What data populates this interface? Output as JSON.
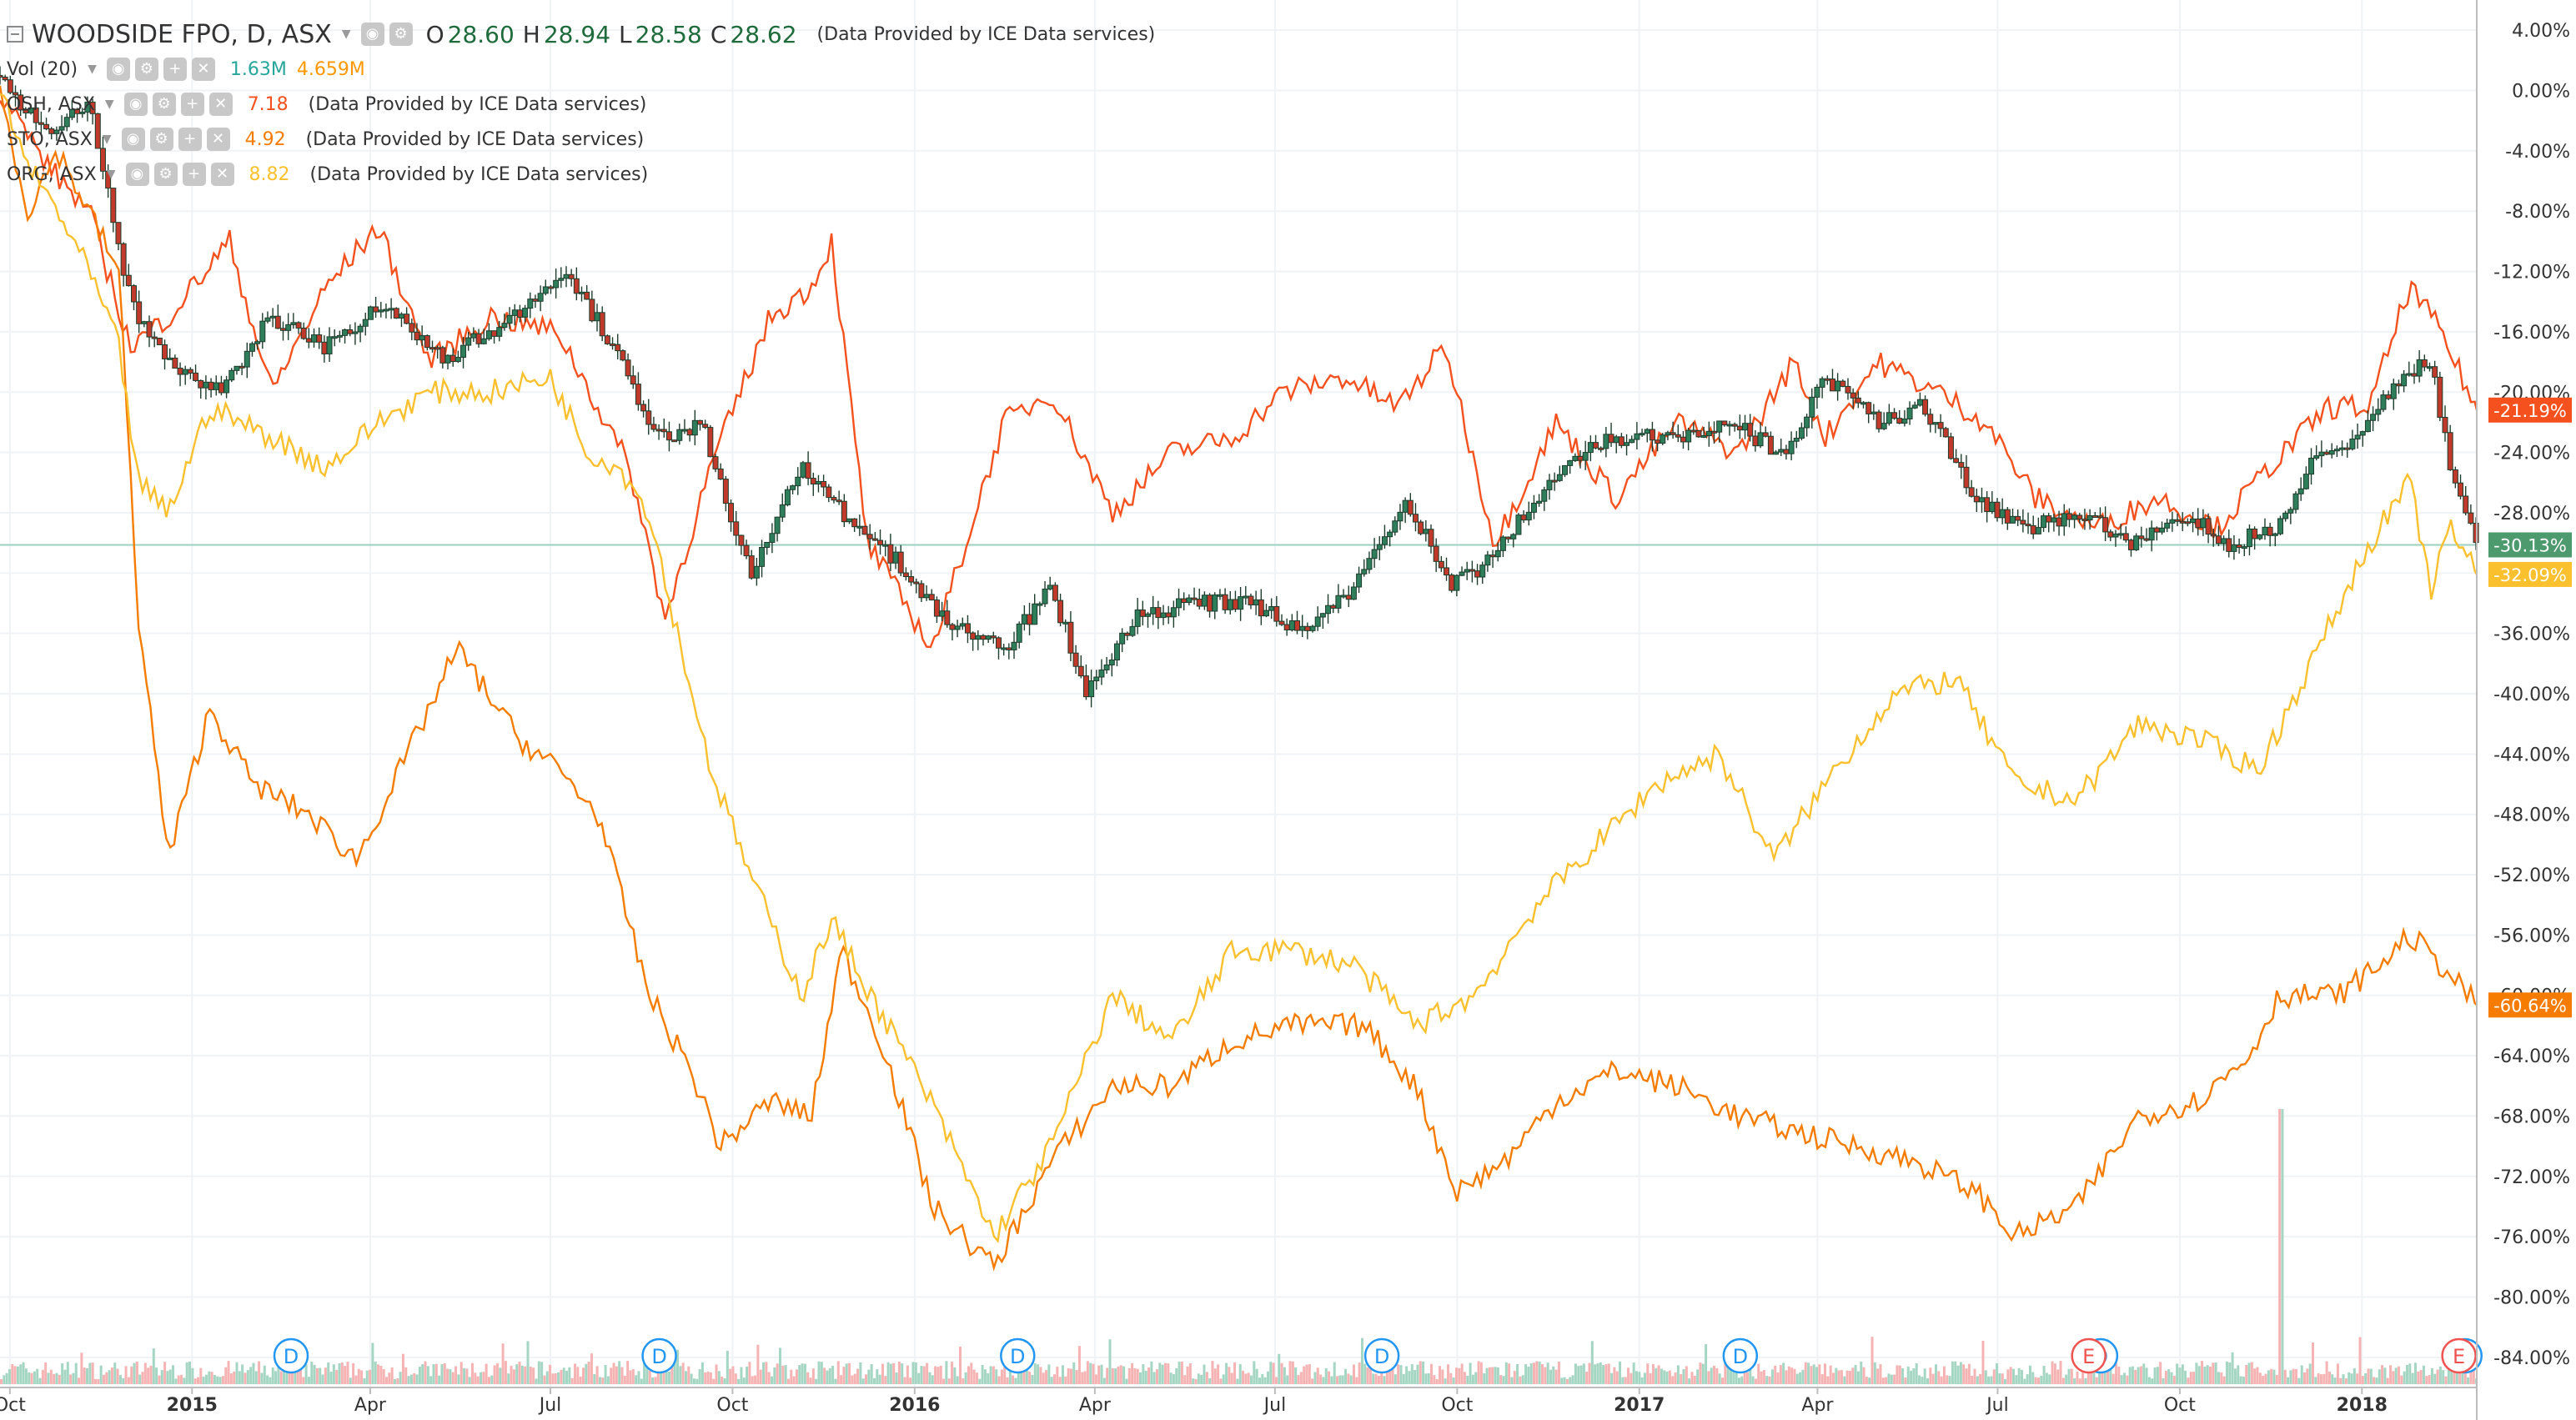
{
  "legend": {
    "main": {
      "title": "WOODSIDE FPO, D, ASX",
      "open_label": "O",
      "open": "28.60",
      "high_label": "H",
      "high": "28.94",
      "low_label": "L",
      "low": "28.58",
      "close_label": "C",
      "close": "28.62",
      "provider": "(Data Provided by ICE Data services)"
    },
    "vol": {
      "title": "Vol (20)",
      "value1": "1.63M",
      "value2": "4.659M",
      "color1": "#26a69a",
      "color2": "#ff9800"
    },
    "compare": [
      {
        "title": "OSH, ASX",
        "value": "7.18",
        "provider": "(Data Provided by ICE Data services)",
        "color": "#f4511e"
      },
      {
        "title": "STO, ASX",
        "value": "4.92",
        "provider": "(Data Provided by ICE Data services)",
        "color": "#f57c00"
      },
      {
        "title": "ORG, ASX",
        "value": "8.82",
        "provider": "(Data Provided by ICE Data services)",
        "color": "#fbc02d"
      }
    ]
  },
  "chart_data": {
    "type": "line",
    "y_unit": "percent change",
    "ylim": [
      -86,
      6
    ],
    "x_range": [
      "2014-09-26",
      "2018-02-28"
    ],
    "grid": true,
    "y_ticks": [
      "4.00%",
      "0.00%",
      "-4.00%",
      "-8.00%",
      "-12.00%",
      "-16.00%",
      "-20.00%",
      "-24.00%",
      "-28.00%",
      "-32.00%",
      "-36.00%",
      "-40.00%",
      "-44.00%",
      "-48.00%",
      "-52.00%",
      "-56.00%",
      "-60.00%",
      "-64.00%",
      "-68.00%",
      "-72.00%",
      "-76.00%",
      "-80.00%",
      "-84.00%"
    ],
    "x_ticks": [
      {
        "label": "Oct",
        "date": "2014-10-01"
      },
      {
        "label": "2015",
        "date": "2015-01-01"
      },
      {
        "label": "Apr",
        "date": "2015-04-01"
      },
      {
        "label": "Jul",
        "date": "2015-07-01"
      },
      {
        "label": "Oct",
        "date": "2015-10-01"
      },
      {
        "label": "2016",
        "date": "2016-01-01"
      },
      {
        "label": "Apr",
        "date": "2016-04-01"
      },
      {
        "label": "Jul",
        "date": "2016-07-01"
      },
      {
        "label": "Oct",
        "date": "2016-10-01"
      },
      {
        "label": "2017",
        "date": "2017-01-01"
      },
      {
        "label": "Apr",
        "date": "2017-04-01"
      },
      {
        "label": "Jul",
        "date": "2017-07-01"
      },
      {
        "label": "Oct",
        "date": "2017-10-01"
      },
      {
        "label": "2018",
        "date": "2018-01-01"
      }
    ],
    "series": [
      {
        "name": "WOODSIDE FPO",
        "color": "#1e5c3a",
        "style": "candlestick",
        "last_label": "-30.13%",
        "label_color": "#4e9a6f",
        "x": [
          "2014-09-26",
          "2014-10-20",
          "2014-11-10",
          "2014-12-01",
          "2014-12-20",
          "2015-01-15",
          "2015-02-10",
          "2015-03-10",
          "2015-04-10",
          "2015-05-10",
          "2015-06-10",
          "2015-07-10",
          "2015-08-01",
          "2015-08-24",
          "2015-09-15",
          "2015-10-10",
          "2015-11-05",
          "2015-11-25",
          "2015-12-15",
          "2016-01-15",
          "2016-02-15",
          "2016-03-10",
          "2016-03-28",
          "2016-04-20",
          "2016-05-20",
          "2016-06-20",
          "2016-07-15",
          "2016-08-10",
          "2016-09-05",
          "2016-09-28",
          "2016-10-20",
          "2016-11-15",
          "2016-12-15",
          "2017-01-15",
          "2017-02-15",
          "2017-03-15",
          "2017-04-05",
          "2017-05-01",
          "2017-05-25",
          "2017-06-20",
          "2017-07-15",
          "2017-08-10",
          "2017-09-05",
          "2017-10-01",
          "2017-10-25",
          "2017-11-20",
          "2017-12-10",
          "2018-01-01",
          "2018-01-20",
          "2018-02-05",
          "2018-02-15",
          "2018-02-28"
        ],
        "y": [
          1,
          -3,
          -1,
          -14,
          -18,
          -20,
          -15,
          -17,
          -14,
          -18,
          -15,
          -12,
          -17,
          -23,
          -22,
          -32,
          -25,
          -28,
          -30,
          -35,
          -37,
          -33,
          -40,
          -35,
          -34,
          -34,
          -36,
          -33,
          -27,
          -33,
          -31,
          -26,
          -23,
          -23,
          -22,
          -24,
          -19,
          -22,
          -21,
          -27,
          -29,
          -28,
          -30,
          -28,
          -30,
          -29,
          -24,
          -23,
          -19,
          -18,
          -25,
          -30.13
        ]
      },
      {
        "name": "OSH",
        "color": "#f4511e",
        "last_label": "-21.19%",
        "label_color": "#f4511e",
        "x": [
          "2014-09-26",
          "2014-10-20",
          "2014-11-10",
          "2014-12-01",
          "2014-12-20",
          "2015-01-20",
          "2015-02-10",
          "2015-03-10",
          "2015-04-05",
          "2015-05-01",
          "2015-06-01",
          "2015-07-05",
          "2015-08-10",
          "2015-08-28",
          "2015-09-20",
          "2015-10-20",
          "2015-11-10",
          "2015-11-20",
          "2015-12-08",
          "2016-01-10",
          "2016-02-15",
          "2016-03-10",
          "2016-04-10",
          "2016-05-10",
          "2016-06-10",
          "2016-07-05",
          "2016-08-05",
          "2016-09-01",
          "2016-09-25",
          "2016-10-20",
          "2016-11-20",
          "2016-12-20",
          "2017-01-20",
          "2017-02-20",
          "2017-03-20",
          "2017-04-05",
          "2017-05-01",
          "2017-06-01",
          "2017-06-25",
          "2017-07-20",
          "2017-08-20",
          "2017-09-20",
          "2017-10-20",
          "2017-11-15",
          "2017-12-15",
          "2018-01-05",
          "2018-01-25",
          "2018-02-10",
          "2018-02-28"
        ],
        "y": [
          0,
          -5,
          -8,
          -17,
          -15,
          -10,
          -20,
          -13,
          -9,
          -18,
          -15,
          -16,
          -25,
          -35,
          -25,
          -15,
          -13,
          -10,
          -30,
          -37,
          -22,
          -20,
          -28,
          -24,
          -23,
          -20,
          -19,
          -21,
          -17,
          -30,
          -22,
          -27,
          -22,
          -24,
          -18,
          -23,
          -18,
          -20,
          -22,
          -27,
          -29,
          -27,
          -29,
          -25,
          -21,
          -21,
          -13,
          -16,
          -21.19
        ]
      },
      {
        "name": "STO",
        "color": "#f57c00",
        "last_label": "-60.64%",
        "label_color": "#f57c00",
        "x": [
          "2014-09-26",
          "2014-10-10",
          "2014-10-25",
          "2014-11-10",
          "2014-11-25",
          "2014-12-05",
          "2014-12-20",
          "2015-01-10",
          "2015-02-01",
          "2015-03-01",
          "2015-03-25",
          "2015-04-20",
          "2015-05-15",
          "2015-06-15",
          "2015-07-05",
          "2015-07-25",
          "2015-08-20",
          "2015-09-10",
          "2015-09-25",
          "2015-10-20",
          "2015-11-10",
          "2015-11-25",
          "2015-12-15",
          "2016-01-10",
          "2016-02-10",
          "2016-03-10",
          "2016-04-10",
          "2016-05-10",
          "2016-06-10",
          "2016-07-10",
          "2016-08-15",
          "2016-09-10",
          "2016-10-01",
          "2016-10-25",
          "2016-11-20",
          "2016-12-20",
          "2017-01-20",
          "2017-02-20",
          "2017-03-20",
          "2017-04-20",
          "2017-05-20",
          "2017-06-20",
          "2017-07-10",
          "2017-08-10",
          "2017-09-10",
          "2017-10-10",
          "2017-11-05",
          "2017-11-20",
          "2017-12-20",
          "2018-01-10",
          "2018-01-25",
          "2018-02-10",
          "2018-02-28"
        ],
        "y": [
          0,
          -8,
          -4,
          -8,
          -12,
          -35,
          -51,
          -41,
          -46,
          -48,
          -51,
          -44,
          -37,
          -43,
          -45,
          -48,
          -60,
          -65,
          -70,
          -67,
          -68,
          -57,
          -63,
          -74,
          -78,
          -71,
          -66,
          -66,
          -63,
          -62,
          -62,
          -66,
          -73,
          -71,
          -67,
          -65,
          -66,
          -68,
          -69,
          -70,
          -71,
          -73,
          -76,
          -74,
          -68,
          -67,
          -64,
          -60,
          -60,
          -58,
          -56,
          -58,
          -60.64
        ]
      },
      {
        "name": "ORG",
        "color": "#fbc02d",
        "last_label": "-32.09%",
        "label_color": "#fbc02d",
        "x": [
          "2014-09-26",
          "2014-10-10",
          "2014-10-25",
          "2014-11-10",
          "2014-11-25",
          "2014-12-05",
          "2014-12-20",
          "2015-01-10",
          "2015-02-10",
          "2015-03-10",
          "2015-04-05",
          "2015-05-01",
          "2015-06-01",
          "2015-07-01",
          "2015-07-20",
          "2015-08-05",
          "2015-08-20",
          "2015-09-05",
          "2015-09-20",
          "2015-10-10",
          "2015-11-05",
          "2015-11-20",
          "2015-12-10",
          "2016-01-05",
          "2016-01-20",
          "2016-02-10",
          "2016-03-10",
          "2016-04-10",
          "2016-05-10",
          "2016-06-10",
          "2016-07-10",
          "2016-08-10",
          "2016-09-10",
          "2016-10-10",
          "2016-11-10",
          "2016-12-10",
          "2017-01-10",
          "2017-02-10",
          "2017-03-10",
          "2017-04-10",
          "2017-05-10",
          "2017-06-10",
          "2017-07-10",
          "2017-08-10",
          "2017-09-10",
          "2017-10-10",
          "2017-11-10",
          "2017-12-10",
          "2018-01-05",
          "2018-01-25",
          "2018-02-05",
          "2018-02-15",
          "2018-02-28"
        ],
        "y": [
          0,
          -5,
          -8,
          -12,
          -17,
          -26,
          -28,
          -21,
          -23,
          -25,
          -22,
          -20,
          -20,
          -19,
          -24,
          -25,
          -28,
          -37,
          -45,
          -52,
          -60,
          -55,
          -60,
          -66,
          -70,
          -76,
          -70,
          -60,
          -63,
          -57,
          -57,
          -58,
          -62,
          -60,
          -54,
          -50,
          -46,
          -44,
          -51,
          -45,
          -40,
          -39,
          -46,
          -47,
          -42,
          -43,
          -45,
          -37,
          -30,
          -26,
          -33,
          -29,
          -32.09
        ]
      }
    ],
    "dividend_markers": [
      {
        "label": "D",
        "date": "2015-02-20"
      },
      {
        "label": "D",
        "date": "2015-08-25"
      },
      {
        "label": "D",
        "date": "2016-02-22"
      },
      {
        "label": "D",
        "date": "2016-08-24"
      },
      {
        "label": "D",
        "date": "2017-02-21"
      },
      {
        "label": "D",
        "date": "2017-08-22"
      },
      {
        "label": "D",
        "date": "2018-02-22"
      }
    ],
    "earnings_markers": [
      {
        "label": "E",
        "date": "2017-08-16"
      },
      {
        "label": "E",
        "date": "2018-02-19"
      }
    ],
    "volume_colors": {
      "up": "#a5d6c4",
      "down": "#f5b3b3"
    }
  }
}
